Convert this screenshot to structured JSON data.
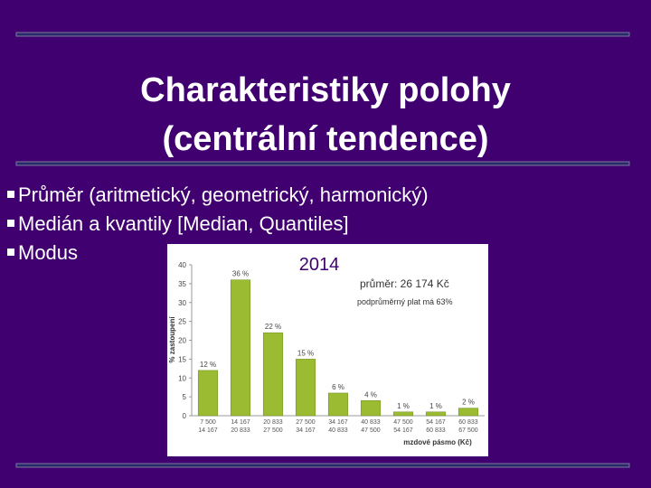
{
  "slide": {
    "title": [
      "Charakteristiky polohy",
      "(centrální tendence)"
    ],
    "bullets": [
      "Průměr (aritmetický, geometrický, harmonický)",
      "Medián a kvantily [Median, Quantiles]",
      "Modus"
    ]
  },
  "chart_data": {
    "type": "bar",
    "title": "2014",
    "annotations": [
      "průměr: 26 174 Kč",
      "podprůměrný plat má 63%"
    ],
    "y_label": "% zastoupení",
    "x_label": "mzdové pásmo (Kč)",
    "categories": [
      [
        "7 500",
        "14 167"
      ],
      [
        "14 167",
        "20 833"
      ],
      [
        "20 833",
        "27 500"
      ],
      [
        "27 500",
        "34 167"
      ],
      [
        "34 167",
        "40 833"
      ],
      [
        "40 833",
        "47 500"
      ],
      [
        "47 500",
        "54 167"
      ],
      [
        "54 167",
        "60 833"
      ],
      [
        "60 833",
        "67 500"
      ]
    ],
    "values": [
      12,
      36,
      22,
      15,
      6,
      4,
      1,
      1,
      2
    ],
    "value_labels": [
      "12 %",
      "36 %",
      "22 %",
      "15 %",
      "6 %",
      "4 %",
      "1 %",
      "1 %",
      "2 %"
    ],
    "color": "#9bbb33",
    "ylim": [
      0,
      40
    ],
    "yticks": [
      0,
      5,
      10,
      15,
      20,
      25,
      30,
      35,
      40
    ]
  }
}
